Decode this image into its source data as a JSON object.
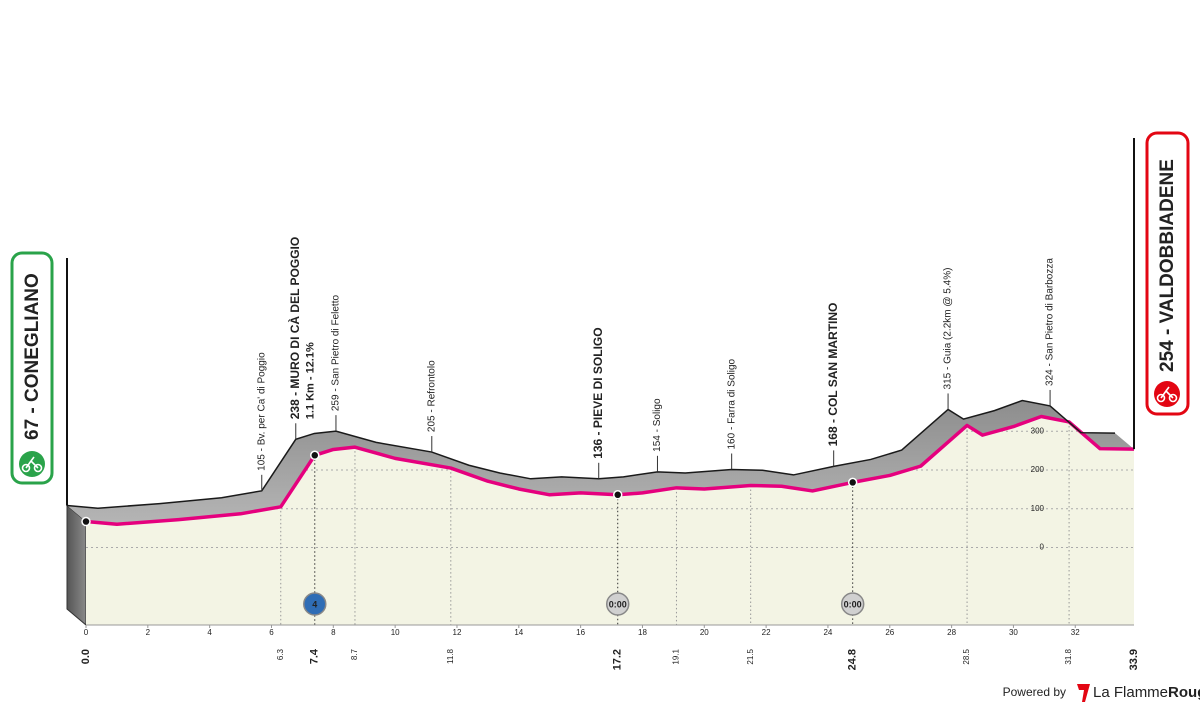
{
  "chart_data": {
    "type": "area",
    "start": {
      "label": "67 - CONEGLIANO",
      "km": {
        "value": 0,
        "label": "0.0"
      },
      "altitude": 67
    },
    "finish": {
      "label": "254 - VALDOBBIADENE",
      "km": 33.9,
      "altitude": 254
    },
    "x": [
      0,
      1,
      3,
      5,
      6.3,
      7.4,
      8,
      8.7,
      10,
      11.8,
      13,
      14,
      15,
      16,
      17.2,
      18,
      19.1,
      20,
      21.5,
      22.5,
      23.5,
      24.8,
      26,
      27,
      28.5,
      29,
      30,
      30.9,
      31.8,
      32.8,
      33.9
    ],
    "values": [
      67,
      60,
      72,
      87,
      105,
      238,
      253,
      259,
      230,
      205,
      171,
      151,
      136,
      141,
      136,
      141,
      154,
      151,
      160,
      158,
      146,
      168,
      186,
      210,
      315,
      290,
      312,
      338,
      324,
      255,
      254
    ],
    "color": "#e5007e",
    "xlim": [
      0,
      33.9
    ],
    "ylim": [
      -200,
      600
    ],
    "xticks": [
      0,
      2,
      4,
      6,
      8,
      10,
      12,
      14,
      16,
      18,
      20,
      22,
      24,
      26,
      28,
      30,
      32
    ],
    "yticks": [
      0,
      100,
      200,
      300
    ],
    "grid": true,
    "waypoints": [
      {
        "label": "105 - Bv. per Ca' di Poggio",
        "km": 6.3,
        "altitude": 105,
        "bold": false
      },
      {
        "label": "238 - MURO DI CÀ DEL POGGIO",
        "sublabel": "1.1 Km - 12.1%",
        "km": 7.4,
        "altitude": 238,
        "bold": true,
        "badge": "4",
        "badge_color": "#2f6db5"
      },
      {
        "label": "259 - San Pietro di Feletto",
        "km": 8.7,
        "altitude": 259,
        "bold": false
      },
      {
        "label": "205 - Refrontolo",
        "km": 11.8,
        "altitude": 205,
        "bold": false
      },
      {
        "label": "136 - PIEVE DI SOLIGO",
        "km": 17.2,
        "altitude": 136,
        "bold": true,
        "badge": "0:00",
        "badge_color": "#d0d0d0"
      },
      {
        "label": "154 - Soligo",
        "km": 19.1,
        "altitude": 154,
        "bold": false
      },
      {
        "label": "160 - Farra di Soligo",
        "km": 21.5,
        "altitude": 160,
        "bold": false
      },
      {
        "label": "168 - COL SAN MARTINO",
        "km": 24.8,
        "altitude": 168,
        "bold": true,
        "badge": "0:00",
        "badge_color": "#d0d0d0"
      },
      {
        "label": "315 - Guia (2.2km @ 5.4%)",
        "km": 28.5,
        "altitude": 315,
        "bold": false
      },
      {
        "label": "324 - San Pietro di Barbozza",
        "km": 31.8,
        "altitude": 324,
        "bold": false
      }
    ]
  },
  "footer": {
    "powered_by": "Powered by",
    "brand": [
      "La Flamme",
      "Rouge"
    ]
  }
}
